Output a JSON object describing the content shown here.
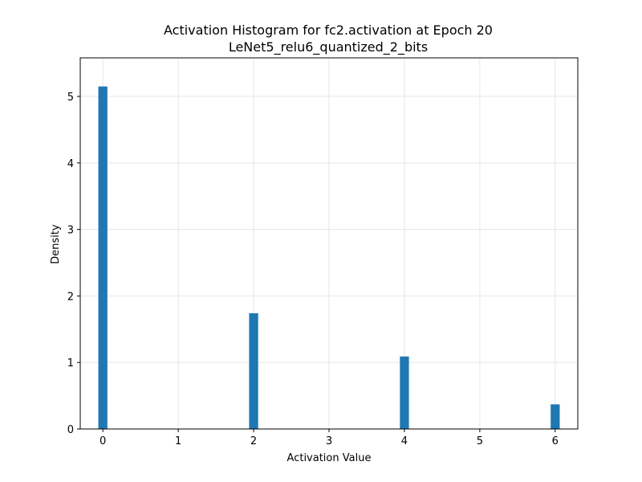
{
  "chart_data": {
    "type": "bar",
    "title": "Activation Histogram for fc2.activation at Epoch 20",
    "subtitle": "LeNet5_relu6_quantized_2_bits",
    "xlabel": "Activation Value",
    "ylabel": "Density",
    "xlim": [
      -0.3,
      6.3
    ],
    "ylim": [
      0,
      5.58
    ],
    "xticks": [
      0,
      1,
      2,
      3,
      4,
      5,
      6
    ],
    "yticks": [
      0,
      1,
      2,
      3,
      4,
      5
    ],
    "bin_width": 0.12,
    "bins": [
      {
        "x": 0,
        "value": 5.15
      },
      {
        "x": 2,
        "value": 1.74
      },
      {
        "x": 4,
        "value": 1.09
      },
      {
        "x": 6,
        "value": 0.37
      }
    ],
    "grid": true,
    "bar_color": "#1f77b4",
    "grid_color": "#e6e6e6"
  }
}
